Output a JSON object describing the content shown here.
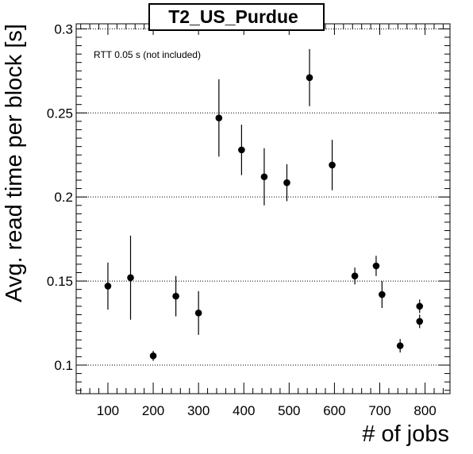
{
  "chart_data": {
    "type": "scatter",
    "title": "T2_US_Purdue",
    "xlabel": "# of jobs",
    "ylabel": "Avg. read time per block [s]",
    "annotation": "RTT 0.05 s (not included)",
    "xlim": [
      30,
      855
    ],
    "ylim": [
      0.083,
      0.303
    ],
    "xticks": [
      100,
      200,
      300,
      400,
      500,
      600,
      700,
      800
    ],
    "xtick_labels": [
      "100",
      "200",
      "300",
      "400",
      "500",
      "600",
      "700",
      "800"
    ],
    "yticks": [
      0.1,
      0.15,
      0.2,
      0.25,
      0.3
    ],
    "ytick_labels": [
      "0.1",
      "0.15",
      "0.2",
      "0.25",
      "0.3"
    ],
    "grid": "horizontal dotted at major y ticks",
    "marker_color": "#000000",
    "points": [
      {
        "x": 100,
        "y": 0.147,
        "err": 0.014
      },
      {
        "x": 150,
        "y": 0.152,
        "err": 0.025
      },
      {
        "x": 200,
        "y": 0.1055,
        "err": 0.003
      },
      {
        "x": 250,
        "y": 0.141,
        "err": 0.012
      },
      {
        "x": 300,
        "y": 0.131,
        "err": 0.013
      },
      {
        "x": 345,
        "y": 0.247,
        "err": 0.023
      },
      {
        "x": 395,
        "y": 0.228,
        "err": 0.015
      },
      {
        "x": 445,
        "y": 0.212,
        "err": 0.017
      },
      {
        "x": 495,
        "y": 0.2085,
        "err": 0.011
      },
      {
        "x": 545,
        "y": 0.271,
        "err": 0.017
      },
      {
        "x": 595,
        "y": 0.219,
        "err": 0.015
      },
      {
        "x": 645,
        "y": 0.153,
        "err": 0.005
      },
      {
        "x": 692,
        "y": 0.159,
        "err": 0.006
      },
      {
        "x": 705,
        "y": 0.142,
        "err": 0.008
      },
      {
        "x": 745,
        "y": 0.1115,
        "err": 0.004
      },
      {
        "x": 788,
        "y": 0.135,
        "err": 0.004
      },
      {
        "x": 788,
        "y": 0.126,
        "err": 0.004
      }
    ]
  }
}
